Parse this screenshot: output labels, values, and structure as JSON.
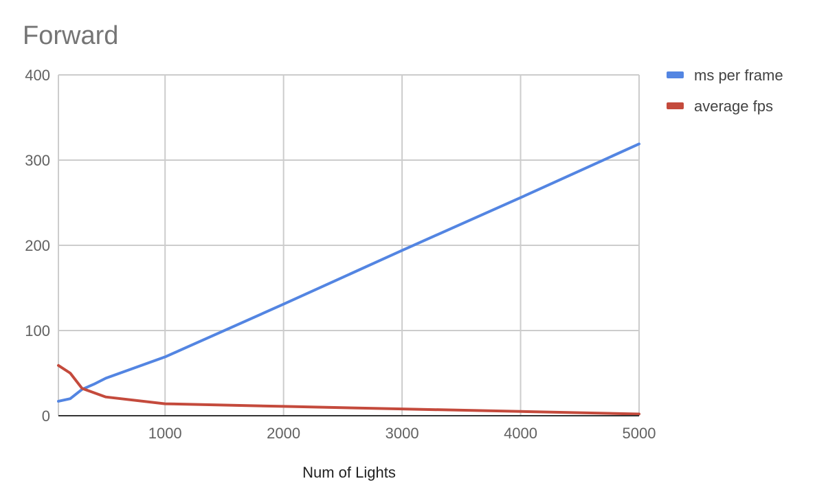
{
  "chart_data": {
    "type": "line",
    "title": "Forward",
    "xlabel": "Num of Lights",
    "ylabel": "",
    "x": [
      100,
      200,
      300,
      400,
      500,
      1000,
      2000,
      3000,
      4000,
      5000
    ],
    "xlim": [
      100,
      5000
    ],
    "xticks": [
      1000,
      2000,
      3000,
      4000,
      5000
    ],
    "ylim": [
      0,
      400
    ],
    "yticks": [
      0,
      100,
      200,
      300,
      400
    ],
    "grid": true,
    "legend_position": "right",
    "series": [
      {
        "name": "ms per frame",
        "color": "#5385e2",
        "values": [
          17,
          20,
          31,
          37,
          44,
          69,
          131,
          194,
          256,
          319
        ]
      },
      {
        "name": "average fps",
        "color": "#c44a3c",
        "values": [
          59,
          50,
          32,
          27,
          22,
          14,
          11,
          8,
          5,
          2
        ]
      }
    ]
  }
}
